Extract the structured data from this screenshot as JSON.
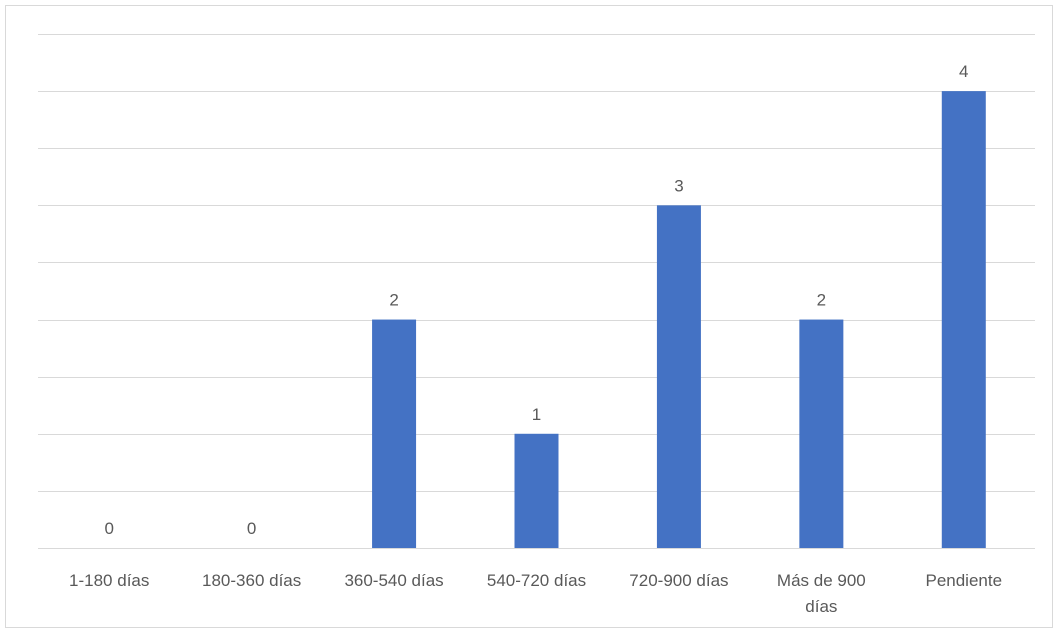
{
  "chart_data": {
    "type": "bar",
    "categories": [
      "1-180 días",
      "180-360 días",
      "360-540 días",
      "540-720 días",
      "720-900 días",
      "Más de 900 días",
      "Pendiente"
    ],
    "category_lines": [
      [
        "1-180 días"
      ],
      [
        "180-360 días"
      ],
      [
        "360-540 días"
      ],
      [
        "540-720 días"
      ],
      [
        "720-900 días"
      ],
      [
        "Más de 900",
        "días"
      ],
      [
        "Pendiente"
      ]
    ],
    "values": [
      0,
      0,
      2,
      1,
      3,
      2,
      4
    ],
    "ylim": [
      0,
      4.5
    ],
    "y_gridline_step": 0.5,
    "grid": true,
    "legend": "none",
    "bar_color": "#4472C4",
    "gridline_color": "#d9d9d9",
    "text_color": "#595959"
  }
}
